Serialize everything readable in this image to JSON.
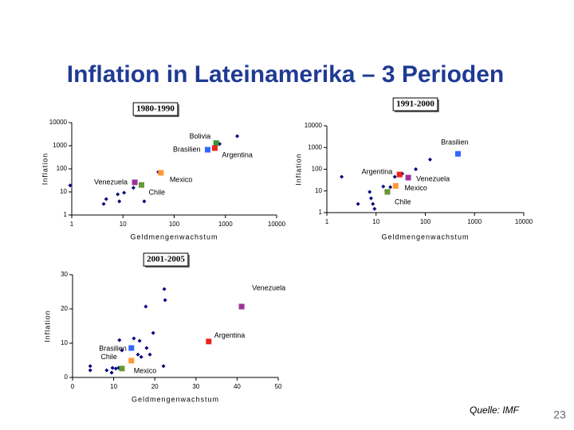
{
  "title": "Inflation in Lateinamerika – 3 Perioden",
  "source": "Quelle: IMF",
  "page_number": 23,
  "chart_data": [
    {
      "type": "scatter",
      "title": "1980-1990",
      "x_label": "Geldmengenwachstum",
      "y_label": "Inflation",
      "log_scale": true,
      "xlim": [
        1,
        10000
      ],
      "ylim": [
        1,
        10000
      ],
      "xticks": [
        1,
        10,
        100,
        1000,
        10000
      ],
      "yticks": [
        1,
        10,
        100,
        1000,
        10000
      ],
      "series": [
        {
          "color": "#000080",
          "x": [
            0.93,
            4.7,
            4.2,
            7.9,
            8.5,
            10.5,
            16,
            26,
            49,
            1700,
            770
          ],
          "values": [
            19,
            4.9,
            3.0,
            7.9,
            3.9,
            9.2,
            15,
            3.9,
            73,
            2600,
            1200
          ]
        },
        {
          "name": "Bolivia",
          "color": "#339933",
          "x": [
            660
          ],
          "values": [
            1300
          ]
        },
        {
          "name": "Brasilien",
          "color": "#3366ff",
          "x": [
            450
          ],
          "values": [
            670
          ]
        },
        {
          "name": "Argentina",
          "color": "#e8241c",
          "x": [
            620
          ],
          "values": [
            790
          ]
        },
        {
          "name": "Mexico",
          "color": "#ff9933",
          "x": [
            55
          ],
          "values": [
            67
          ]
        },
        {
          "name": "Venezuela",
          "color": "#993399",
          "x": [
            17
          ],
          "values": [
            26
          ]
        },
        {
          "name": "Chile",
          "color": "#669933",
          "x": [
            23
          ],
          "values": [
            20
          ]
        }
      ]
    },
    {
      "type": "scatter",
      "title": "1991-2000",
      "x_label": "Geldmengenwachstum",
      "y_label": "Inflation",
      "log_scale": true,
      "xlim": [
        1,
        10000
      ],
      "ylim": [
        1,
        10000
      ],
      "xticks": [
        1,
        10,
        100,
        1000,
        10000
      ],
      "yticks": [
        1,
        10,
        100,
        1000,
        10000
      ],
      "series": [
        {
          "color": "#000080",
          "x": [
            2.0,
            4.3,
            7.4,
            7.9,
            8.6,
            9.3,
            14,
            16,
            19.5,
            24,
            34,
            64,
            125
          ],
          "values": [
            45,
            2.5,
            9,
            4.6,
            2.5,
            1.5,
            16,
            10,
            15,
            45,
            62,
            100,
            280
          ]
        },
        {
          "name": "Brasilien",
          "color": "#3366ff",
          "x": [
            460
          ],
          "values": [
            510
          ]
        },
        {
          "name": "Argentina",
          "color": "#e8241c",
          "x": [
            30
          ],
          "values": [
            57
          ]
        },
        {
          "name": "Venezuela",
          "color": "#993399",
          "x": [
            45
          ],
          "values": [
            41
          ]
        },
        {
          "name": "Mexico",
          "color": "#ff9933",
          "x": [
            25
          ],
          "values": [
            17
          ]
        },
        {
          "name": "Chile",
          "color": "#669933",
          "x": [
            17
          ],
          "values": [
            9
          ]
        }
      ]
    },
    {
      "type": "scatter",
      "title": "2001-2005",
      "x_label": "Geldmengenwachstum",
      "y_label": "Inflation",
      "log_scale": false,
      "xlim": [
        0,
        50
      ],
      "ylim": [
        0,
        30
      ],
      "xticks": [
        0,
        10,
        20,
        30,
        40,
        50
      ],
      "yticks": [
        0,
        10,
        20,
        30
      ],
      "series": [
        {
          "color": "#000080",
          "x": [
            4.3,
            4.3,
            8.3,
            9.5,
            9.7,
            10.5,
            11.4,
            11.2,
            12.0,
            14.9,
            16.3,
            15.9,
            16.7,
            18.0,
            18.8,
            19.6,
            17.8,
            22.3,
            22.5,
            22.1
          ],
          "values": [
            3.3,
            2.1,
            2.1,
            1.4,
            2.8,
            2.6,
            10.9,
            2.8,
            7.9,
            11.4,
            10.7,
            6.7,
            6.0,
            8.6,
            6.7,
            13.0,
            20.7,
            25.8,
            22.6,
            3.3
          ]
        },
        {
          "name": "Venezuela",
          "color": "#993399",
          "x": [
            41.1
          ],
          "values": [
            20.7
          ]
        },
        {
          "name": "Argentina",
          "color": "#e8241c",
          "x": [
            33.1
          ],
          "values": [
            10.5
          ]
        },
        {
          "name": "Brasilien",
          "color": "#3366ff",
          "x": [
            14.3
          ],
          "values": [
            8.6
          ]
        },
        {
          "name": "Chile",
          "color": "#669933",
          "x": [
            12
          ],
          "values": [
            2.6
          ]
        },
        {
          "name": "Mexico",
          "color": "#ff9933",
          "x": [
            14.3
          ],
          "values": [
            4.9
          ]
        }
      ]
    }
  ]
}
